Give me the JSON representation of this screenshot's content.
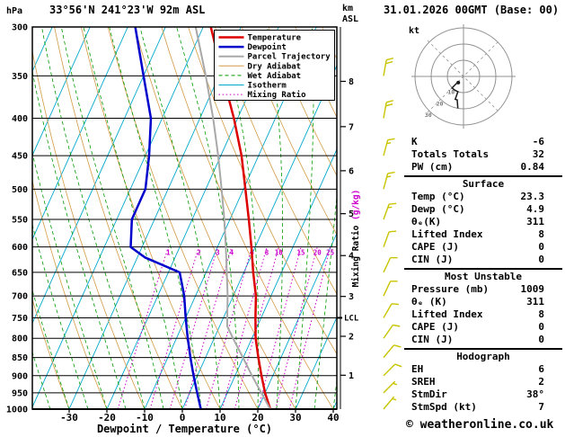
{
  "header": {
    "station": "33°56'N 241°23'W 92m ASL",
    "datetime": "31.01.2026 00GMT (Base: 00)"
  },
  "footer": {
    "copyright": "© weatheronline.co.uk"
  },
  "colors": {
    "temperature": "#dd0000",
    "dewpoint": "#0000cc",
    "parcel": "#a8a8a8",
    "dry_adiabat": "#d29a45",
    "wet_adiabat": "#009900",
    "isotherm": "#00a8cc",
    "mixing_ratio": "#cc00cc",
    "grid": "#000000",
    "wind_barb": "#c8c400",
    "hodograph_grid": "#909090",
    "hodograph_trace": "#1a1a1a"
  },
  "axes": {
    "pressure_unit": "hPa",
    "altitude_unit": "km",
    "altitude_unit2": "ASL",
    "xlabel": "Dewpoint / Temperature (°C)",
    "mixing_ratio_label": "Mixing Ratio ",
    "mixing_ratio_unit": "(g/kg)",
    "lcl_label": "LCL",
    "pressure_ticks": [
      300,
      350,
      400,
      450,
      500,
      550,
      600,
      650,
      700,
      750,
      800,
      850,
      900,
      950,
      1000
    ],
    "temp_ticks": [
      -30,
      -20,
      -10,
      0,
      10,
      20,
      30,
      40
    ],
    "km_ticks": [
      1,
      2,
      3,
      4,
      5,
      6,
      7,
      8
    ]
  },
  "legend": [
    {
      "label": "Temperature",
      "key": "temperature",
      "dash": "solid",
      "width": 2.5
    },
    {
      "label": "Dewpoint",
      "key": "dewpoint",
      "dash": "solid",
      "width": 2.5
    },
    {
      "label": "Parcel Trajectory",
      "key": "parcel",
      "dash": "solid",
      "width": 2
    },
    {
      "label": "Dry Adiabat",
      "key": "dry_adiabat",
      "dash": "solid",
      "width": 1
    },
    {
      "label": "Wet Adiabat",
      "key": "wet_adiabat",
      "dash": "dashed",
      "width": 1
    },
    {
      "label": "Isotherm",
      "key": "isotherm",
      "dash": "solid",
      "width": 1
    },
    {
      "label": "Mixing Ratio",
      "key": "mixing_ratio",
      "dash": "dotted",
      "width": 1
    }
  ],
  "chart_data": {
    "type": "line",
    "variant": "skew-t-log-p-sounding",
    "title": "33°56'N 241°23'W 92m ASL",
    "x_axis": {
      "label": "Dewpoint / Temperature (°C)",
      "range_c": [
        -40,
        41
      ],
      "ticks": [
        -30,
        -20,
        -10,
        0,
        10,
        20,
        30,
        40
      ]
    },
    "y_axis": {
      "unit": "hPa",
      "scale": "log",
      "range": [
        1000,
        300
      ]
    },
    "series": [
      {
        "name": "Temperature",
        "unit": "°C vs hPa",
        "points": [
          [
            1000,
            23.3
          ],
          [
            950,
            20
          ],
          [
            900,
            17
          ],
          [
            850,
            14
          ],
          [
            800,
            11
          ],
          [
            750,
            8.5
          ],
          [
            700,
            6
          ],
          [
            650,
            2.5
          ],
          [
            600,
            -1
          ],
          [
            550,
            -5
          ],
          [
            500,
            -9.5
          ],
          [
            450,
            -14.5
          ],
          [
            400,
            -21
          ],
          [
            350,
            -29
          ],
          [
            300,
            -38
          ]
        ]
      },
      {
        "name": "Dewpoint",
        "unit": "°C vs hPa",
        "points": [
          [
            1000,
            4.9
          ],
          [
            950,
            2
          ],
          [
            900,
            -1
          ],
          [
            850,
            -4
          ],
          [
            800,
            -7
          ],
          [
            750,
            -10
          ],
          [
            700,
            -13
          ],
          [
            650,
            -17
          ],
          [
            620,
            -28
          ],
          [
            600,
            -33
          ],
          [
            550,
            -36
          ],
          [
            500,
            -36
          ],
          [
            450,
            -39
          ],
          [
            400,
            -43
          ],
          [
            350,
            -50
          ],
          [
            300,
            -58
          ]
        ]
      },
      {
        "name": "Parcel Trajectory",
        "unit": "°C vs hPa",
        "points": [
          [
            1000,
            23.3
          ],
          [
            950,
            19
          ],
          [
            900,
            14.5
          ],
          [
            850,
            9.9
          ],
          [
            800,
            5
          ],
          [
            770,
            2
          ],
          [
            700,
            -1.5
          ],
          [
            650,
            -4.5
          ],
          [
            600,
            -7.8
          ],
          [
            550,
            -11.5
          ],
          [
            500,
            -15.8
          ],
          [
            450,
            -20.7
          ],
          [
            400,
            -26.5
          ],
          [
            350,
            -33.5
          ],
          [
            300,
            -42
          ]
        ]
      }
    ],
    "mixing_ratio_lines_g_kg": [
      1,
      2,
      3,
      4,
      6,
      8,
      10,
      15,
      20,
      25
    ],
    "isotherm_step_c": 10,
    "dry_adiabat_step_c": 10,
    "wet_adiabat_step_c": 5,
    "lcl_pressure_hpa": 750,
    "wind_barbs": {
      "unit": "kt",
      "levels": [
        [
          1000,
          40,
          5
        ],
        [
          950,
          45,
          5
        ],
        [
          900,
          45,
          10
        ],
        [
          850,
          40,
          10
        ],
        [
          800,
          35,
          10
        ],
        [
          750,
          30,
          10
        ],
        [
          700,
          25,
          10
        ],
        [
          650,
          25,
          10
        ],
        [
          600,
          20,
          10
        ],
        [
          550,
          20,
          15
        ],
        [
          500,
          15,
          15
        ],
        [
          450,
          15,
          15
        ],
        [
          400,
          10,
          20
        ],
        [
          350,
          10,
          20
        ]
      ]
    }
  },
  "hodograph": {
    "unit_label": "kt",
    "rings_kt": [
      10,
      20,
      30
    ],
    "ring_labels": [
      "10",
      "20",
      "30"
    ]
  },
  "panel": {
    "rows_top": [
      {
        "label": "K",
        "value": "-6"
      },
      {
        "label": "Totals Totals",
        "value": "32"
      },
      {
        "label": "PW (cm)",
        "value": "0.84"
      }
    ],
    "sections": [
      {
        "title": "Surface",
        "rows": [
          {
            "label": "Temp (°C)",
            "value": "23.3"
          },
          {
            "label": "Dewp (°C)",
            "value": "4.9"
          },
          {
            "label": "θₑ(K)",
            "value": "311"
          },
          {
            "label": "Lifted Index",
            "value": "8"
          },
          {
            "label": "CAPE (J)",
            "value": "0"
          },
          {
            "label": "CIN (J)",
            "value": "0"
          }
        ]
      },
      {
        "title": "Most Unstable",
        "rows": [
          {
            "label": "Pressure (mb)",
            "value": "1009"
          },
          {
            "label": "θₑ (K)",
            "value": "311"
          },
          {
            "label": "Lifted Index",
            "value": "8"
          },
          {
            "label": "CAPE (J)",
            "value": "0"
          },
          {
            "label": "CIN (J)",
            "value": "0"
          }
        ]
      },
      {
        "title": "Hodograph",
        "rows": [
          {
            "label": "EH",
            "value": "6"
          },
          {
            "label": "SREH",
            "value": "2"
          },
          {
            "label": "StmDir",
            "value": "38°"
          },
          {
            "label": "StmSpd (kt)",
            "value": "7"
          }
        ]
      }
    ]
  }
}
